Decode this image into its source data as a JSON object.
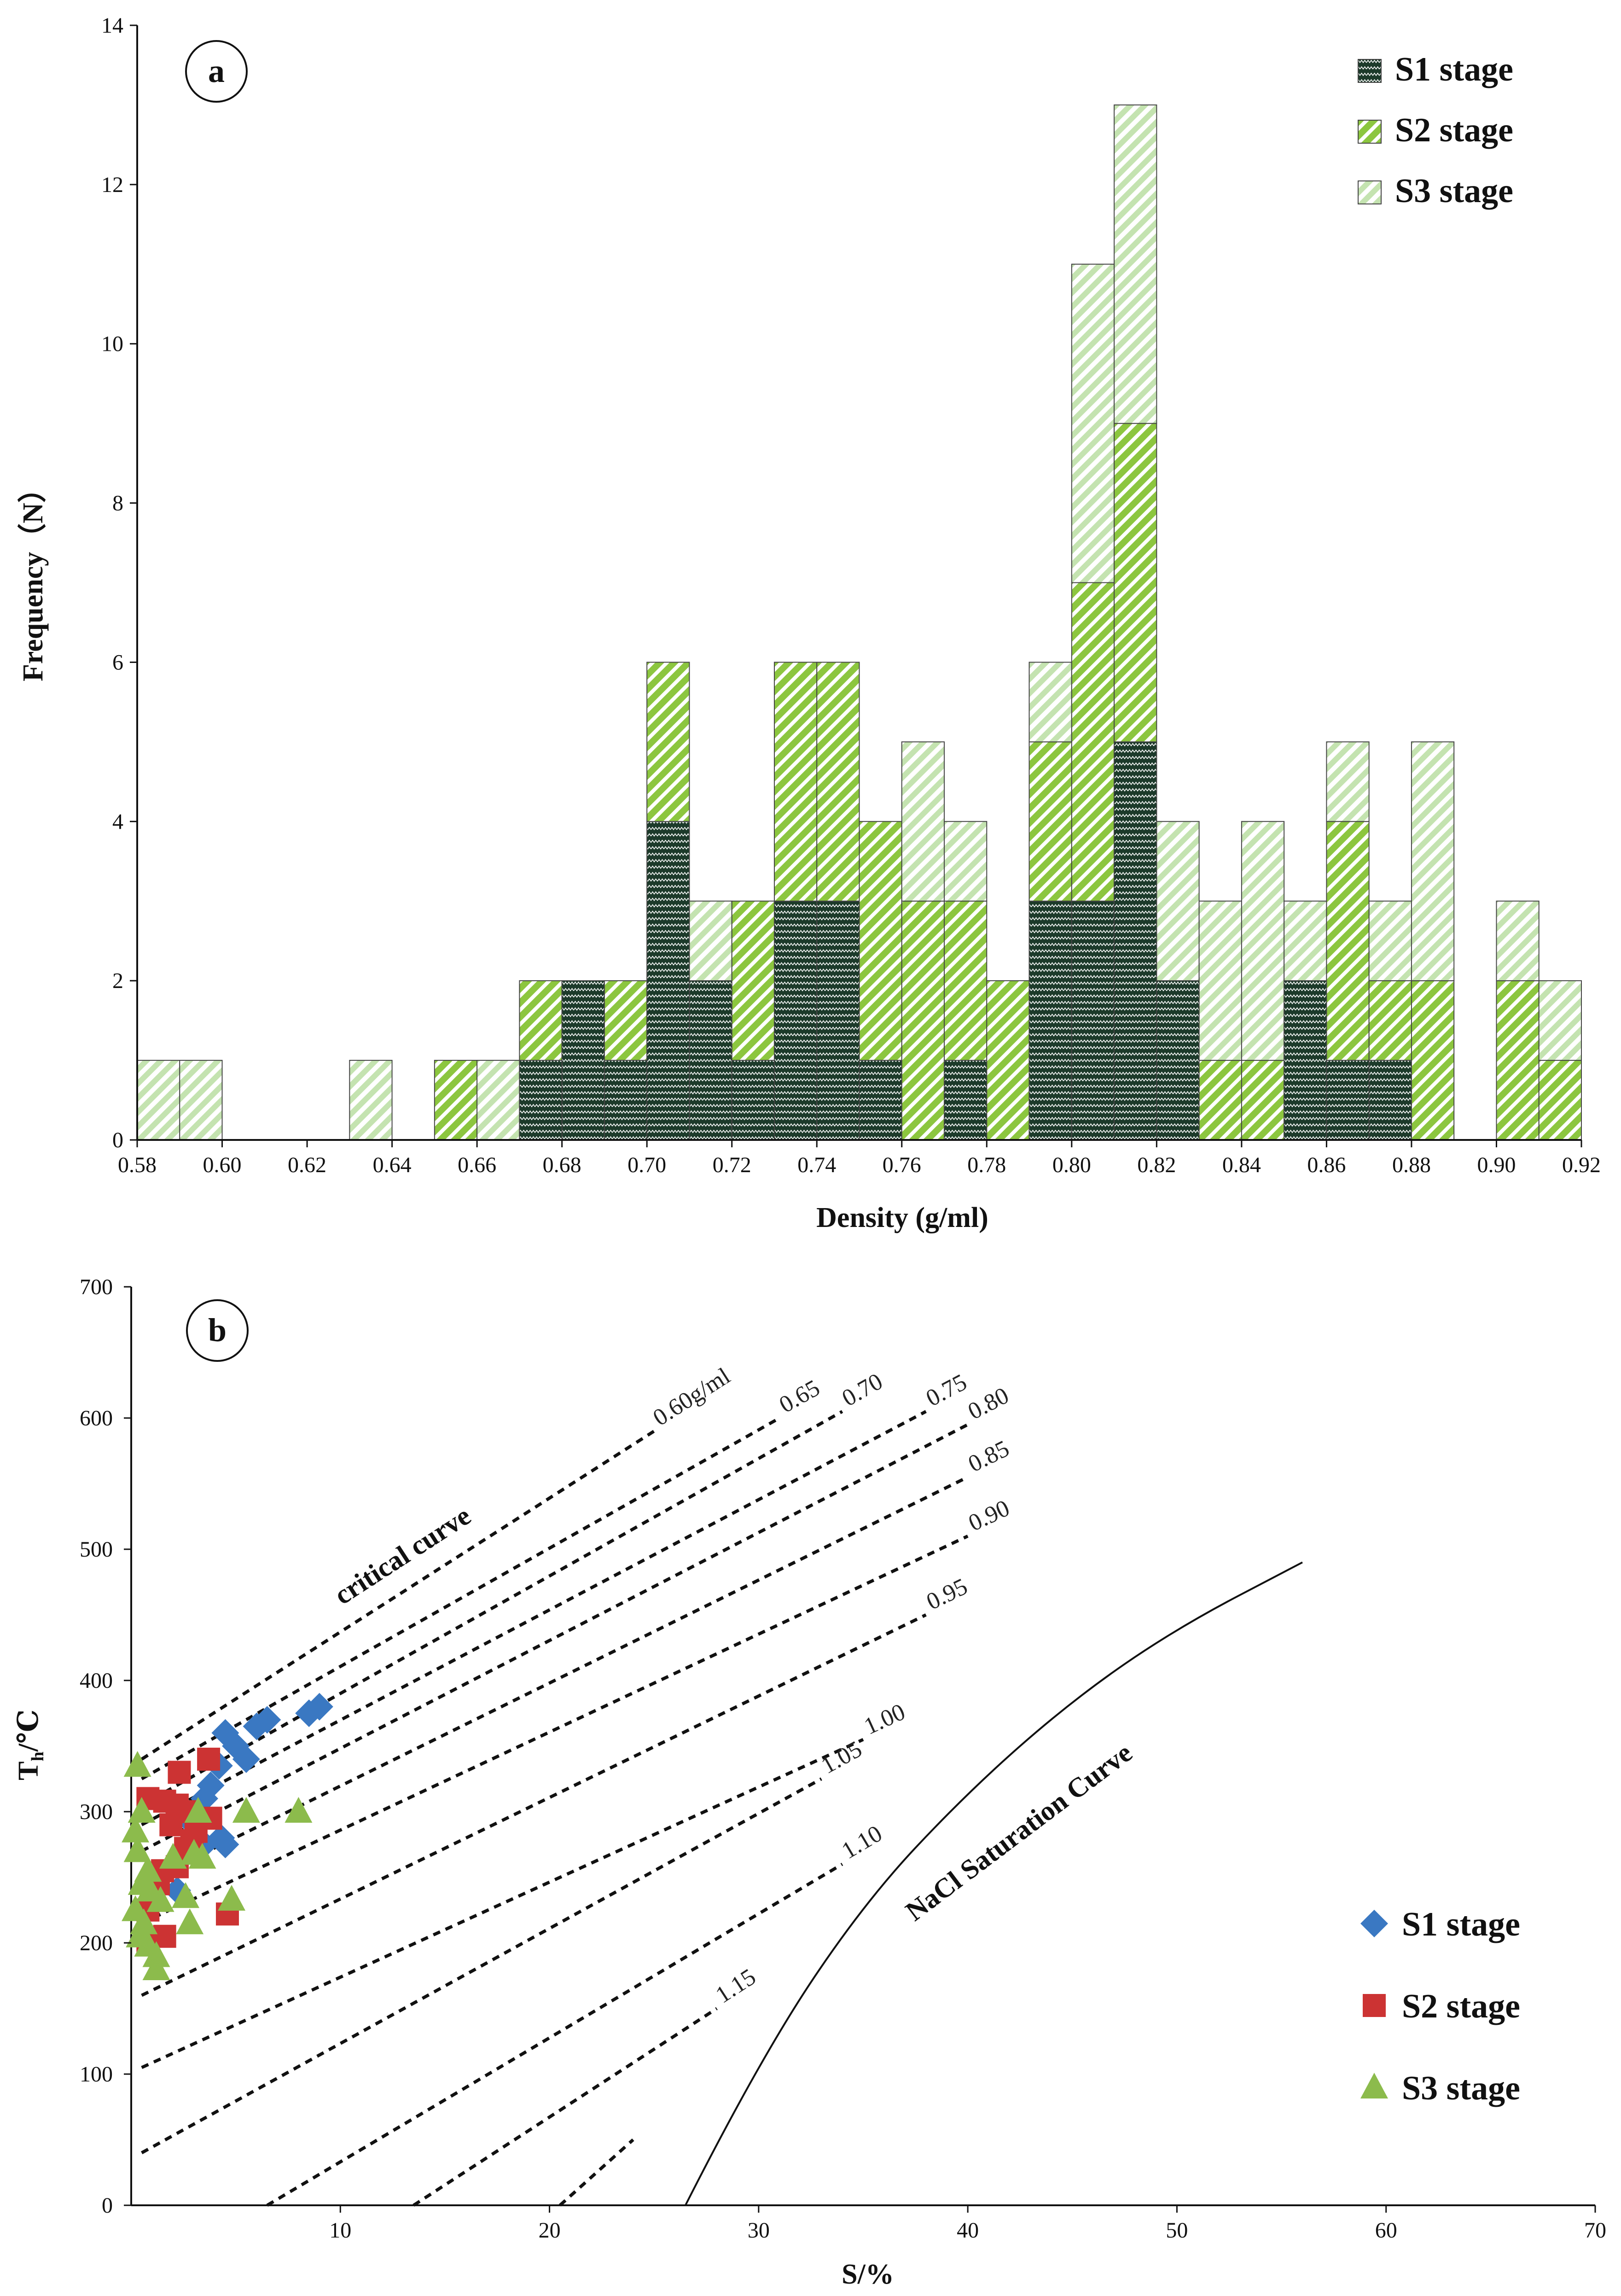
{
  "chart_data": [
    {
      "type": "bar",
      "stacked": true,
      "panel_label": "a",
      "xlabel": "Density (g/ml)",
      "ylabel": "Frequency（N）",
      "xlim": [
        0.58,
        0.92
      ],
      "ylim": [
        0,
        14
      ],
      "bin_width": 0.01,
      "x_ticks": [
        "0.58",
        "0.60",
        "0.62",
        "0.64",
        "0.66",
        "0.68",
        "0.70",
        "0.72",
        "0.74",
        "0.76",
        "0.78",
        "0.80",
        "0.82",
        "0.84",
        "0.86",
        "0.88",
        "0.90",
        "0.92"
      ],
      "y_ticks": [
        "0",
        "2",
        "4",
        "6",
        "8",
        "10",
        "12",
        "14"
      ],
      "bins": [
        0.58,
        0.59,
        0.63,
        0.65,
        0.66,
        0.67,
        0.68,
        0.69,
        0.7,
        0.71,
        0.72,
        0.73,
        0.74,
        0.75,
        0.76,
        0.77,
        0.78,
        0.79,
        0.8,
        0.81,
        0.82,
        0.83,
        0.84,
        0.85,
        0.86,
        0.87,
        0.88,
        0.9,
        0.91
      ],
      "series": [
        {
          "name": "S1 stage",
          "color": "#1c3a2a",
          "values": [
            0,
            0,
            0,
            0,
            0,
            1,
            2,
            1,
            4,
            2,
            1,
            3,
            3,
            1,
            0,
            1,
            0,
            3,
            3,
            5,
            2,
            0,
            0,
            2,
            1,
            1,
            0,
            0,
            0
          ]
        },
        {
          "name": "S2 stage",
          "color": "#8cc63f",
          "values": [
            0,
            0,
            0,
            1,
            0,
            1,
            0,
            1,
            2,
            0,
            2,
            3,
            3,
            3,
            3,
            2,
            2,
            2,
            4,
            4,
            0,
            1,
            1,
            0,
            3,
            1,
            2,
            2,
            1
          ]
        },
        {
          "name": "S3 stage",
          "color": "#c4e3b0",
          "values": [
            1,
            1,
            1,
            0,
            1,
            0,
            0,
            0,
            0,
            1,
            0,
            0,
            0,
            0,
            2,
            1,
            0,
            1,
            4,
            4,
            2,
            2,
            3,
            1,
            1,
            1,
            3,
            1,
            1
          ]
        }
      ],
      "legend": [
        "S1 stage",
        "S2 stage",
        "S3 stage"
      ],
      "legend_position": "top-right"
    },
    {
      "type": "scatter",
      "panel_label": "b",
      "xlabel": "S/%",
      "ylabel": "Th/℃",
      "ylabel_main": "T",
      "ylabel_sub": "h",
      "ylabel_unit": "/℃",
      "xlim": [
        0,
        70
      ],
      "ylim": [
        0,
        700
      ],
      "x_ticks": [
        "10",
        "20",
        "30",
        "40",
        "50",
        "60",
        "70"
      ],
      "y_ticks": [
        "0",
        "100",
        "200",
        "300",
        "400",
        "500",
        "600",
        "700"
      ],
      "isochores": [
        {
          "label": "0.60g/ml",
          "points": [
            [
              0.5,
              340
            ],
            [
              25,
              590
            ]
          ]
        },
        {
          "label": "0.65",
          "points": [
            [
              0.5,
              325
            ],
            [
              31,
              600
            ]
          ]
        },
        {
          "label": "0.70",
          "points": [
            [
              0.5,
              305
            ],
            [
              34,
              605
            ]
          ]
        },
        {
          "label": "0.75",
          "points": [
            [
              0.5,
              290
            ],
            [
              38,
              605
            ]
          ]
        },
        {
          "label": "0.80",
          "points": [
            [
              0.5,
              270
            ],
            [
              40,
              595
            ]
          ]
        },
        {
          "label": "0.85",
          "points": [
            [
              0.5,
              245
            ],
            [
              40,
              555
            ]
          ]
        },
        {
          "label": "0.90",
          "points": [
            [
              0.5,
              215
            ],
            [
              40,
              510
            ]
          ]
        },
        {
          "label": "0.95",
          "points": [
            [
              0.5,
              160
            ],
            [
              38,
              450
            ]
          ]
        },
        {
          "label": "1.00",
          "points": [
            [
              0.5,
              105
            ],
            [
              35,
              355
            ]
          ]
        },
        {
          "label": "1.05",
          "points": [
            [
              0.5,
              40
            ],
            [
              33,
              325
            ]
          ]
        },
        {
          "label": "1.10",
          "points": [
            [
              6.5,
              0
            ],
            [
              34,
              260
            ]
          ]
        },
        {
          "label": "1.15",
          "points": [
            [
              13.5,
              0
            ],
            [
              28,
              150
            ]
          ]
        },
        {
          "label": "",
          "points": [
            [
              20.5,
              0
            ],
            [
              24,
              50
            ]
          ]
        }
      ],
      "critical_curve_label": "critical curve",
      "saturation_curve_label": "NaCl Saturation Curve",
      "saturation_curve": [
        [
          26.5,
          0
        ],
        [
          30,
          110
        ],
        [
          35,
          230
        ],
        [
          40,
          315
        ],
        [
          45,
          385
        ],
        [
          50,
          440
        ],
        [
          56,
          490
        ]
      ],
      "series": [
        {
          "name": "S1 stage",
          "color": "#3a78c2",
          "marker": "diamond",
          "points": [
            [
              4.5,
              360
            ],
            [
              5,
              350
            ],
            [
              6,
              365
            ],
            [
              6.5,
              370
            ],
            [
              8.5,
              375
            ],
            [
              9,
              380
            ],
            [
              5.5,
              340
            ],
            [
              4.2,
              335
            ],
            [
              3.8,
              320
            ],
            [
              3.5,
              310
            ],
            [
              3,
              290
            ],
            [
              4.3,
              280
            ],
            [
              4.5,
              275
            ],
            [
              2.8,
              295
            ],
            [
              2.5,
              270
            ],
            [
              2.2,
              240
            ],
            [
              3.5,
              275
            ]
          ]
        },
        {
          "name": "S2 stage",
          "color": "#cc3333",
          "marker": "square",
          "points": [
            [
              3.7,
              340
            ],
            [
              2.3,
              330
            ],
            [
              0.8,
              310
            ],
            [
              1.6,
              308
            ],
            [
              2.2,
              305
            ],
            [
              2.6,
              300
            ],
            [
              3.8,
              295
            ],
            [
              1.9,
              290
            ],
            [
              3.1,
              285
            ],
            [
              2.6,
              272
            ],
            [
              2.2,
              258
            ],
            [
              1.5,
              255
            ],
            [
              1.3,
              245
            ],
            [
              0.8,
              225
            ],
            [
              4.6,
              222
            ],
            [
              1.6,
              205
            ],
            [
              0.8,
              200
            ],
            [
              2.9,
              278
            ]
          ]
        },
        {
          "name": "S3 stage",
          "color": "#8cbb4c",
          "marker": "triangle",
          "points": [
            [
              0.3,
              335
            ],
            [
              0.5,
              300
            ],
            [
              5.5,
              300
            ],
            [
              8,
              300
            ],
            [
              3.2,
              300
            ],
            [
              0.2,
              285
            ],
            [
              0.3,
              270
            ],
            [
              2,
              265
            ],
            [
              3,
              268
            ],
            [
              3.4,
              265
            ],
            [
              0.8,
              255
            ],
            [
              0.5,
              245
            ],
            [
              0.9,
              240
            ],
            [
              1.4,
              232
            ],
            [
              0.2,
              225
            ],
            [
              0.6,
              215
            ],
            [
              2.6,
              235
            ],
            [
              4.8,
              233
            ],
            [
              0.4,
              205
            ],
            [
              0.8,
              198
            ],
            [
              1.2,
              190
            ],
            [
              1.2,
              180
            ],
            [
              2.8,
              215
            ]
          ]
        }
      ],
      "legend": [
        "S1 stage",
        "S2 stage",
        "S3 stage"
      ],
      "legend_position": "bottom-right"
    }
  ]
}
